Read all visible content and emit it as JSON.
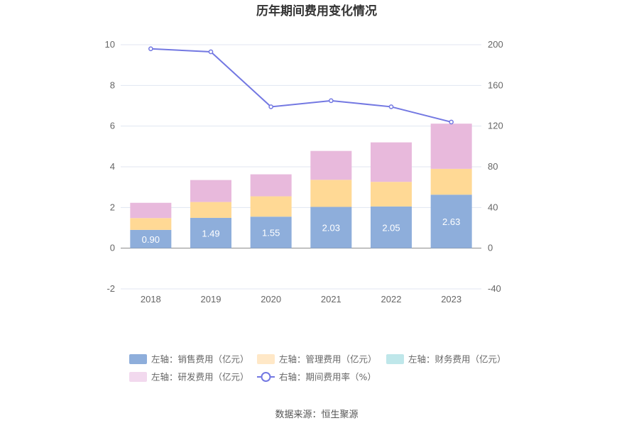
{
  "chart_data": {
    "type": "bar",
    "title": "历年期间费用变化情况",
    "categories": [
      "2018",
      "2019",
      "2020",
      "2021",
      "2022",
      "2023"
    ],
    "left_axis": {
      "ylim": [
        -2,
        10
      ],
      "ticks": [
        "-2",
        "0",
        "2",
        "4",
        "6",
        "8",
        "10"
      ]
    },
    "right_axis": {
      "ylim": [
        -40,
        200
      ],
      "ticks": [
        "-40",
        "0",
        "40",
        "80",
        "120",
        "160",
        "200"
      ]
    },
    "grid": true,
    "legend_position": "bottom",
    "series": [
      {
        "name": "左轴：销售费用（亿元）",
        "kind": "bar",
        "stack": "cost",
        "axis": "left",
        "color": "#8eaedb",
        "values": [
          0.9,
          1.49,
          1.55,
          2.03,
          2.05,
          2.63
        ],
        "labels": [
          "0.90",
          "1.49",
          "1.55",
          "2.03",
          "2.05",
          "2.63"
        ]
      },
      {
        "name": "左轴：管理费用（亿元）",
        "kind": "bar",
        "stack": "cost",
        "axis": "left",
        "color": "#ffd995",
        "values": [
          0.58,
          0.78,
          1.0,
          1.33,
          1.21,
          1.27
        ]
      },
      {
        "name": "左轴：财务费用（亿元）",
        "kind": "bar",
        "stack": "cost",
        "axis": "left",
        "color": "#bfe7ea",
        "values": [
          0,
          0,
          0,
          0,
          0,
          0
        ]
      },
      {
        "name": "左轴：研发费用（亿元）",
        "kind": "bar",
        "stack": "cost",
        "axis": "left",
        "color": "#e8b9dc",
        "values": [
          0.75,
          1.08,
          1.08,
          1.42,
          1.94,
          2.22
        ]
      },
      {
        "name": "右轴：期间费用率（%）",
        "kind": "line",
        "axis": "right",
        "color": "#7378e2",
        "values": [
          196,
          193,
          139,
          145,
          139,
          124
        ]
      }
    ],
    "legend_colors": [
      "#8eaedb",
      "#ffe8c7",
      "#bfe7ea",
      "#f2d9ee",
      "#7378e2"
    ]
  },
  "source": "数据来源：恒生聚源"
}
